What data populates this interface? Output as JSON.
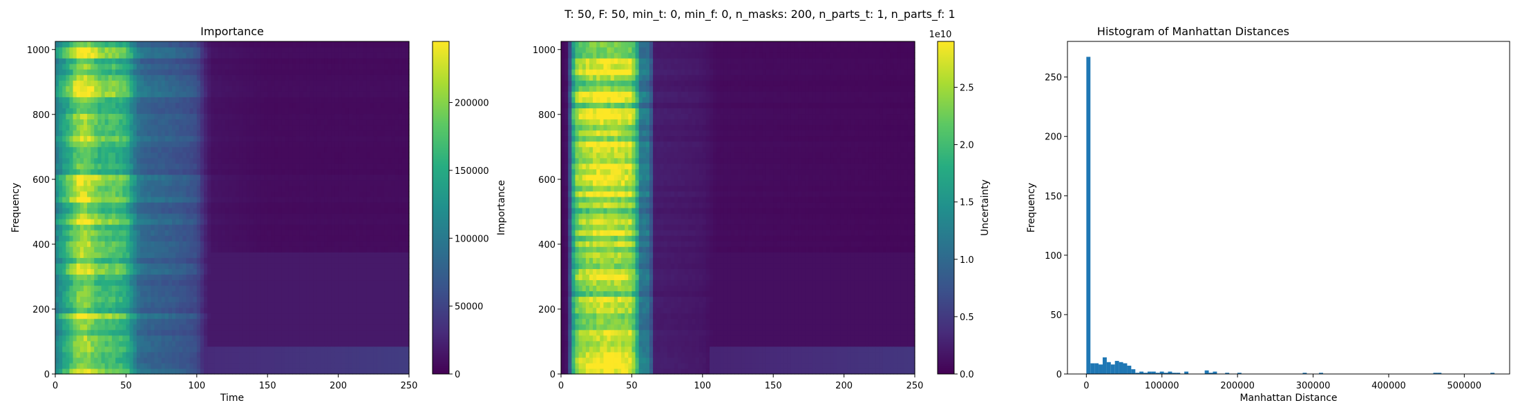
{
  "figure": {
    "suptitle": "T: 50, F: 50, min_t: 0, min_f: 0, n_masks: 200, n_parts_t: 1, n_parts_f: 1"
  },
  "colors": {
    "viridis": [
      "#440154",
      "#472c7a",
      "#3b518b",
      "#2c718e",
      "#21908d",
      "#27ad81",
      "#5cc863",
      "#aadc32",
      "#fde725"
    ],
    "bar": "#1f77b4"
  },
  "chart_data": [
    {
      "type": "heatmap",
      "title": "Importance",
      "xlabel": "Time",
      "ylabel": "Frequency",
      "xlim": [
        0,
        250
      ],
      "ylim": [
        0,
        1025
      ],
      "xticks": [
        0,
        50,
        100,
        150,
        200,
        250
      ],
      "yticks": [
        0,
        200,
        400,
        600,
        800,
        1000
      ],
      "colorbar": {
        "label": "Importance",
        "range": [
          0,
          245000
        ],
        "ticks": [
          0,
          50000,
          100000,
          150000,
          200000
        ],
        "tick_labels": [
          "0",
          "50000",
          "100000",
          "150000",
          "200000"
        ],
        "colormap": "viridis"
      },
      "time_profile": [
        {
          "t": 0,
          "v": 0.45
        },
        {
          "t": 5,
          "v": 0.58
        },
        {
          "t": 10,
          "v": 0.7
        },
        {
          "t": 15,
          "v": 0.85
        },
        {
          "t": 20,
          "v": 0.9
        },
        {
          "t": 25,
          "v": 0.84
        },
        {
          "t": 30,
          "v": 0.76
        },
        {
          "t": 35,
          "v": 0.72
        },
        {
          "t": 40,
          "v": 0.74
        },
        {
          "t": 45,
          "v": 0.7
        },
        {
          "t": 50,
          "v": 0.66
        },
        {
          "t": 55,
          "v": 0.5
        },
        {
          "t": 60,
          "v": 0.36
        },
        {
          "t": 70,
          "v": 0.33
        },
        {
          "t": 80,
          "v": 0.31
        },
        {
          "t": 90,
          "v": 0.28
        },
        {
          "t": 100,
          "v": 0.24
        },
        {
          "t": 105,
          "v": 0.12
        },
        {
          "t": 110,
          "v": 0.05
        },
        {
          "t": 150,
          "v": 0.03
        },
        {
          "t": 200,
          "v": 0.03
        },
        {
          "t": 250,
          "v": 0.03
        }
      ],
      "low_freq_band": {
        "f_max": 380,
        "v": 0.07
      },
      "bottom_band": {
        "f_max": 80,
        "v": 0.12
      }
    },
    {
      "type": "heatmap",
      "title": "",
      "xlabel": "",
      "ylabel": "",
      "xlim": [
        0,
        250
      ],
      "ylim": [
        0,
        1025
      ],
      "xticks": [
        0,
        50,
        100,
        150,
        200,
        250
      ],
      "yticks": [
        0,
        200,
        400,
        600,
        800,
        1000
      ],
      "colorbar": {
        "label": "Uncertainty",
        "range": [
          0,
          2.9
        ],
        "ticks": [
          0.0,
          0.5,
          1.0,
          1.5,
          2.0,
          2.5
        ],
        "tick_labels": [
          "0.0",
          "0.5",
          "1.0",
          "1.5",
          "2.0",
          "2.5"
        ],
        "offset_text": "1e10",
        "colormap": "viridis"
      },
      "time_profile": [
        {
          "t": 0,
          "v": 0.02
        },
        {
          "t": 5,
          "v": 0.05
        },
        {
          "t": 8,
          "v": 0.55
        },
        {
          "t": 12,
          "v": 0.8
        },
        {
          "t": 20,
          "v": 0.86
        },
        {
          "t": 30,
          "v": 0.9
        },
        {
          "t": 40,
          "v": 0.88
        },
        {
          "t": 50,
          "v": 0.85
        },
        {
          "t": 54,
          "v": 0.6
        },
        {
          "t": 56,
          "v": 0.4
        },
        {
          "t": 63,
          "v": 0.38
        },
        {
          "t": 65,
          "v": 0.08
        },
        {
          "t": 100,
          "v": 0.06
        },
        {
          "t": 110,
          "v": 0.03
        },
        {
          "t": 250,
          "v": 0.02
        }
      ],
      "low_freq_band": {
        "f_max": 380,
        "v": 0.04
      },
      "bottom_band": {
        "f_max": 80,
        "v": 0.1
      }
    },
    {
      "type": "bar",
      "title": "Histogram of Manhattan Distances",
      "xlabel": "Manhattan Distance",
      "ylabel": "Frequency",
      "xlim": [
        -25000,
        560000
      ],
      "ylim": [
        0,
        280
      ],
      "xticks": [
        0,
        100000,
        200000,
        300000,
        400000,
        500000
      ],
      "yticks": [
        0,
        50,
        100,
        150,
        200,
        250
      ],
      "bin_width": 5400,
      "bins": [
        {
          "x": 0,
          "count": 267
        },
        {
          "x": 5400,
          "count": 9
        },
        {
          "x": 10800,
          "count": 9
        },
        {
          "x": 16200,
          "count": 8
        },
        {
          "x": 21600,
          "count": 14
        },
        {
          "x": 27000,
          "count": 10
        },
        {
          "x": 32400,
          "count": 8
        },
        {
          "x": 37800,
          "count": 11
        },
        {
          "x": 43200,
          "count": 10
        },
        {
          "x": 48600,
          "count": 9
        },
        {
          "x": 54000,
          "count": 7
        },
        {
          "x": 59400,
          "count": 4
        },
        {
          "x": 64800,
          "count": 1
        },
        {
          "x": 70200,
          "count": 2
        },
        {
          "x": 75600,
          "count": 1
        },
        {
          "x": 81000,
          "count": 2
        },
        {
          "x": 86400,
          "count": 2
        },
        {
          "x": 91800,
          "count": 1
        },
        {
          "x": 97200,
          "count": 2
        },
        {
          "x": 102600,
          "count": 1
        },
        {
          "x": 108000,
          "count": 2
        },
        {
          "x": 113400,
          "count": 1
        },
        {
          "x": 118800,
          "count": 1
        },
        {
          "x": 129600,
          "count": 2
        },
        {
          "x": 156600,
          "count": 3
        },
        {
          "x": 162000,
          "count": 1
        },
        {
          "x": 167400,
          "count": 2
        },
        {
          "x": 183600,
          "count": 1
        },
        {
          "x": 199800,
          "count": 1
        },
        {
          "x": 286200,
          "count": 1
        },
        {
          "x": 307800,
          "count": 1
        },
        {
          "x": 459000,
          "count": 1
        },
        {
          "x": 464400,
          "count": 1
        },
        {
          "x": 534600,
          "count": 1
        }
      ]
    }
  ]
}
